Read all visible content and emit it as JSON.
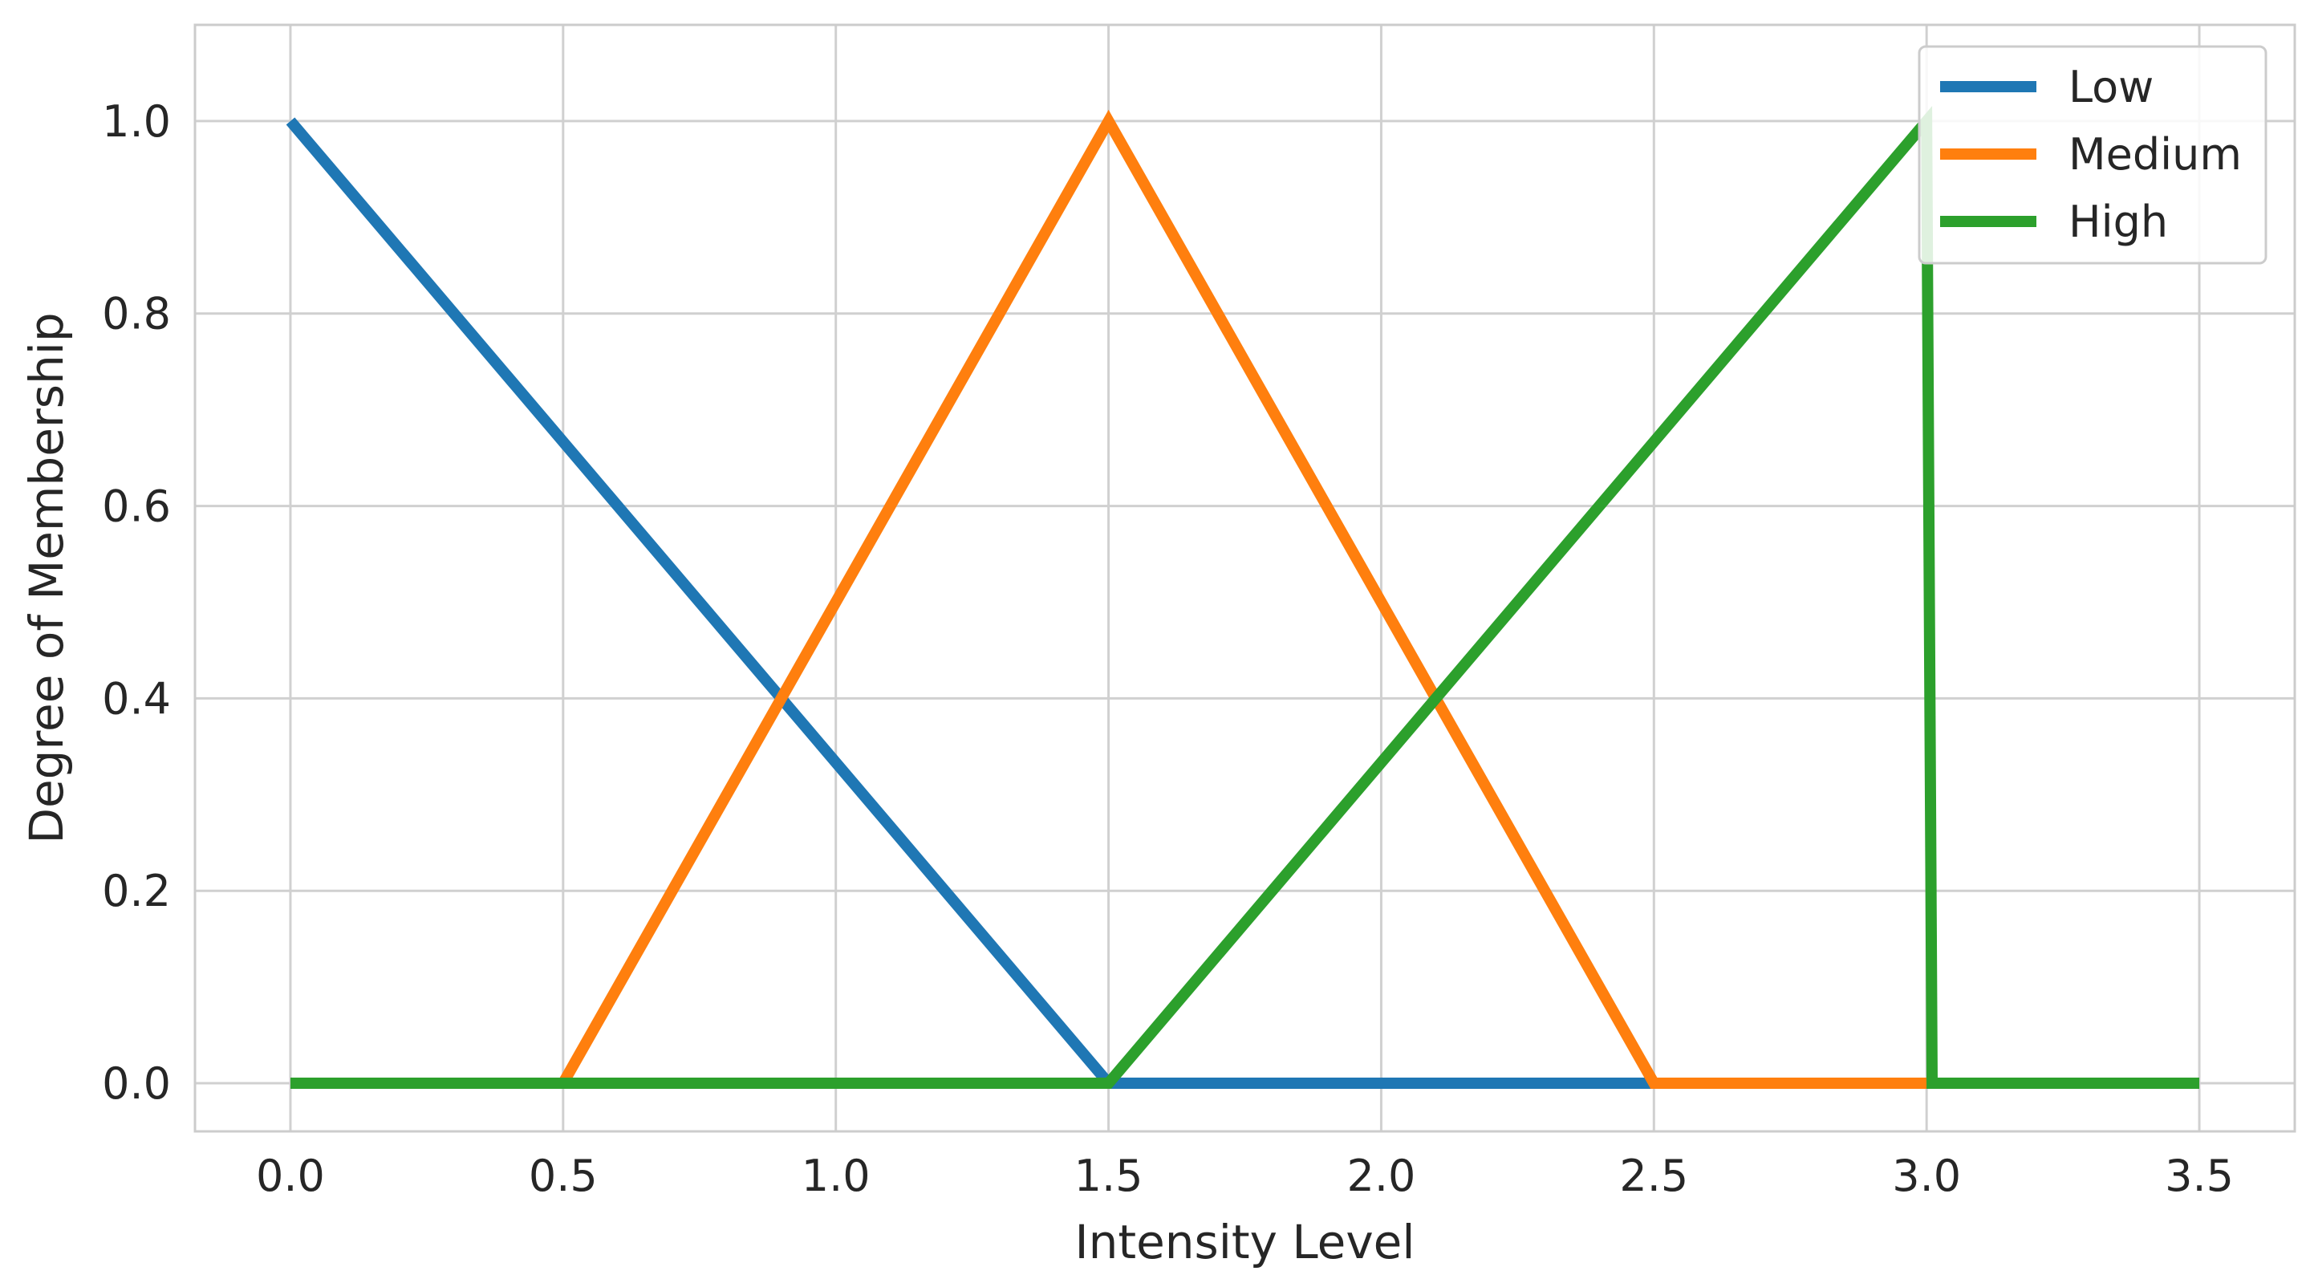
{
  "chart_data": {
    "type": "line",
    "title": "",
    "xlabel": "Intensity Level",
    "ylabel": "Degree of Membership",
    "xlim": [
      -0.175,
      3.675
    ],
    "ylim": [
      -0.05,
      1.1
    ],
    "xticks": [
      "0.0",
      "0.5",
      "1.0",
      "1.5",
      "2.0",
      "2.5",
      "3.0",
      "3.5"
    ],
    "xtick_values": [
      0.0,
      0.5,
      1.0,
      1.5,
      2.0,
      2.5,
      3.0,
      3.5
    ],
    "yticks": [
      "0.0",
      "0.2",
      "0.4",
      "0.6",
      "0.8",
      "1.0"
    ],
    "ytick_values": [
      0.0,
      0.2,
      0.4,
      0.6,
      0.8,
      1.0
    ],
    "grid": true,
    "legend_position": "top-right",
    "series": [
      {
        "name": "Low",
        "color": "#1f77b4",
        "x": [
          0.0,
          1.5,
          3.5
        ],
        "y": [
          1.0,
          0.0,
          0.0
        ]
      },
      {
        "name": "Medium",
        "color": "#ff7f0e",
        "x": [
          0.0,
          0.5,
          1.5,
          2.5,
          3.5
        ],
        "y": [
          0.0,
          0.0,
          1.0,
          0.0,
          0.0
        ]
      },
      {
        "name": "High",
        "color": "#2ca02c",
        "x": [
          0.0,
          1.5,
          3.0,
          3.01,
          3.5
        ],
        "y": [
          0.0,
          0.0,
          1.0,
          0.0,
          0.0
        ]
      }
    ]
  }
}
